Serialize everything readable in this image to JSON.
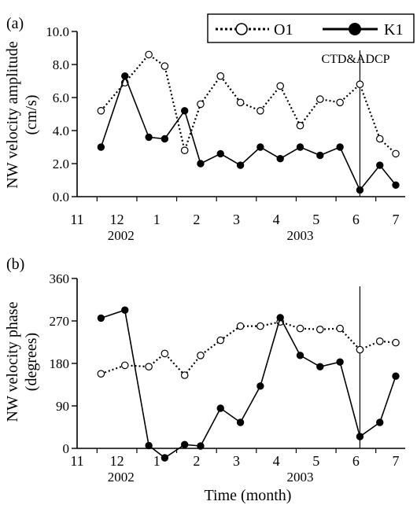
{
  "chart_data": [
    {
      "panel_label": "(a)",
      "type": "line",
      "ylabel_lines": [
        "NW velocity amplitude",
        "(cm/s)"
      ],
      "ylim": [
        0,
        10
      ],
      "yticks": [
        0,
        2,
        4,
        6,
        8,
        10
      ],
      "ytick_labels": [
        "0.0",
        "2.0",
        "4.0",
        "6.0",
        "8.0",
        "10.0"
      ],
      "xlim": [
        11,
        7.5
      ],
      "x_month_labels": [
        "11",
        "12",
        "1",
        "2",
        "3",
        "4",
        "5",
        "6",
        "7"
      ],
      "x_year_labels": [
        "2002",
        "2003"
      ],
      "series": [
        {
          "name": "O1",
          "style": "dotted-open-circle",
          "x": [
            11.6,
            12.2,
            12.8,
            13.2,
            13.7,
            14.1,
            14.6,
            15.1,
            15.6,
            16.1,
            16.6,
            17.1,
            17.6,
            18.1,
            18.6,
            19.0,
            19.4
          ],
          "values": [
            5.2,
            6.9,
            8.6,
            7.9,
            2.8,
            5.6,
            7.3,
            5.7,
            5.2,
            6.7,
            4.3,
            5.9,
            5.7,
            6.8,
            3.5,
            2.6,
            null
          ]
        },
        {
          "name": "K1",
          "style": "solid-filled-circle",
          "x": [
            11.6,
            12.2,
            12.8,
            13.2,
            13.7,
            14.1,
            14.6,
            15.1,
            15.6,
            16.1,
            16.6,
            17.1,
            17.6,
            18.1,
            18.6,
            19.0
          ],
          "values": [
            3.0,
            7.3,
            3.6,
            3.5,
            5.2,
            2.0,
            2.6,
            1.9,
            3.0,
            2.3,
            3.0,
            2.5,
            3.0,
            0.4,
            1.9,
            0.7
          ]
        }
      ],
      "annotation": {
        "text": "CTD&ADCP",
        "x": 18.1
      },
      "legend": {
        "position": "top-right",
        "entries": [
          "O1",
          "K1"
        ]
      }
    },
    {
      "panel_label": "(b)",
      "type": "line",
      "ylabel_lines": [
        "NW velocity phase",
        "(degrees)"
      ],
      "ylim": [
        0,
        360
      ],
      "yticks": [
        0,
        90,
        180,
        270,
        360
      ],
      "ytick_labels": [
        "0",
        "90",
        "180",
        "270",
        "360"
      ],
      "x_month_labels": [
        "11",
        "12",
        "1",
        "2",
        "3",
        "4",
        "5",
        "6",
        "7"
      ],
      "x_year_labels": [
        "2002",
        "2003"
      ],
      "xlabel": "Time (month)",
      "series": [
        {
          "name": "O1",
          "style": "dotted-open-circle",
          "x": [
            11.6,
            12.2,
            12.8,
            13.2,
            13.7,
            14.1,
            14.6,
            15.1,
            15.6,
            16.1,
            16.6,
            17.1,
            17.6,
            18.1,
            18.6,
            19.0
          ],
          "values": [
            158,
            176,
            173,
            201,
            155,
            197,
            229,
            259,
            259,
            268,
            254,
            252,
            254,
            209,
            227,
            224
          ]
        },
        {
          "name": "K1",
          "style": "solid-filled-circle",
          "x": [
            11.6,
            12.2,
            12.8,
            13.2,
            13.7,
            14.1,
            14.6,
            15.1,
            15.6,
            16.1,
            16.6,
            17.1,
            17.6,
            18.1,
            18.6,
            19.0
          ],
          "values": [
            276,
            293,
            6,
            -20,
            8,
            5,
            85,
            55,
            132,
            277,
            197,
            173,
            183,
            25,
            55,
            153
          ]
        }
      ],
      "vline_x": 18.1
    }
  ]
}
